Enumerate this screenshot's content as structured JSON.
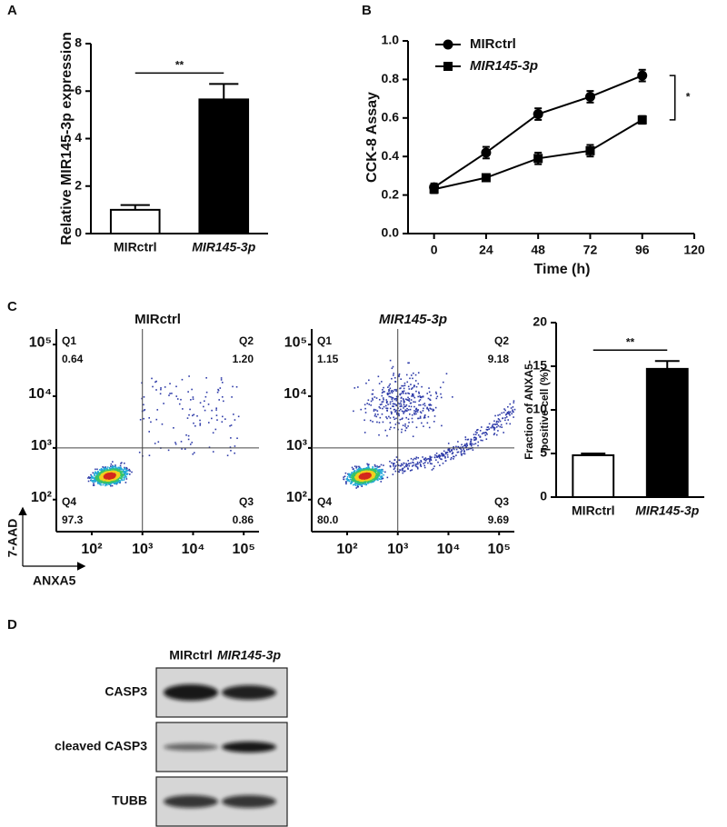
{
  "chart_data": [
    {
      "type": "bar",
      "panel": "A",
      "categories": [
        "MIRctrl",
        "MIR145-3p"
      ],
      "values": [
        1.0,
        5.65
      ],
      "errors": [
        0.2,
        0.65
      ],
      "colors": [
        "#ffffff",
        "#000000"
      ],
      "ylim": [
        0,
        8
      ],
      "yticks": [
        0,
        2,
        4,
        6,
        8
      ],
      "ylabel": "Relative MIR145-3p expression",
      "annotation": "**"
    },
    {
      "type": "line",
      "panel": "B",
      "x": [
        0,
        24,
        48,
        72,
        96
      ],
      "series": [
        {
          "name": "MIRctrl",
          "marker": "circle",
          "color": "#000000",
          "values": [
            0.24,
            0.42,
            0.62,
            0.71,
            0.82
          ],
          "errors": [
            0.02,
            0.03,
            0.03,
            0.03,
            0.03
          ]
        },
        {
          "name": "MIR145-3p",
          "marker": "square",
          "color": "#000000",
          "values": [
            0.23,
            0.29,
            0.39,
            0.43,
            0.59
          ],
          "errors": [
            0.02,
            0.01,
            0.03,
            0.03,
            0.02
          ]
        }
      ],
      "xlim": [
        -12,
        120
      ],
      "xticks": [
        0,
        24,
        48,
        72,
        96,
        120
      ],
      "ylim": [
        0,
        1
      ],
      "yticks": [
        {
          "value": 0,
          "label": "0.0"
        },
        {
          "value": 0.2,
          "label": "0.2"
        },
        {
          "value": 0.4,
          "label": "0.4"
        },
        {
          "value": 0.6,
          "label": "0.6"
        },
        {
          "value": 0.8,
          "label": "0.8"
        },
        {
          "value": 1,
          "label": "1.0"
        }
      ],
      "xlabel": "Time (h)",
      "ylabel": "CCK-8 Assay",
      "annotation": "*",
      "legend": "upper left"
    },
    {
      "type": "bar",
      "categories": [
        "MIRctrl",
        "MIR145-3p"
      ],
      "values": [
        4.8,
        14.7
      ],
      "errors": [
        0.2,
        0.9
      ],
      "colors": [
        "#ffffff",
        "#000000"
      ],
      "ylim": [
        0,
        20
      ],
      "yticks": [
        0,
        5,
        10,
        15,
        20
      ],
      "ylabel": [
        "Fraction of ANXA5-",
        "positive cell (%)"
      ],
      "annotation": "**"
    }
  ],
  "flow": {
    "panel": "C",
    "xlabel": "ANXA5",
    "ylabel": "7-AAD",
    "scale": "log",
    "xlim": [
      20,
      200000
    ],
    "ylim": [
      24,
      200000
    ],
    "xticks": [
      {
        "value": 100,
        "label": "10²"
      },
      {
        "value": 1000,
        "label": "10³"
      },
      {
        "value": 10000,
        "label": "10⁴"
      },
      {
        "value": 100000,
        "label": "10⁵"
      }
    ],
    "yticks": [
      {
        "value": 100,
        "label": "10²"
      },
      {
        "value": 1000,
        "label": "10³"
      },
      {
        "value": 10000,
        "label": "10⁴"
      },
      {
        "value": 100000,
        "label": "10⁵"
      }
    ],
    "gate": [
      1000,
      1000
    ],
    "plots": [
      {
        "title": "MIRctrl",
        "quadrants": [
          {
            "name": "Q1",
            "value": "0.64"
          },
          {
            "name": "Q2",
            "value": "1.20"
          },
          {
            "name": "Q4",
            "value": "97.3"
          },
          {
            "name": "Q3",
            "value": "0.86"
          }
        ]
      },
      {
        "title": "MIR145-3p",
        "quadrants": [
          {
            "name": "Q1",
            "value": "1.15"
          },
          {
            "name": "Q2",
            "value": "9.18"
          },
          {
            "name": "Q4",
            "value": "80.0"
          },
          {
            "name": "Q3",
            "value": "9.69"
          }
        ]
      }
    ]
  },
  "blot": {
    "panel": "D",
    "lanes": [
      "MIRctrl",
      "MIR145-3p"
    ],
    "rows": [
      "CASP3",
      "cleaved CASP3",
      "TUBB"
    ]
  }
}
